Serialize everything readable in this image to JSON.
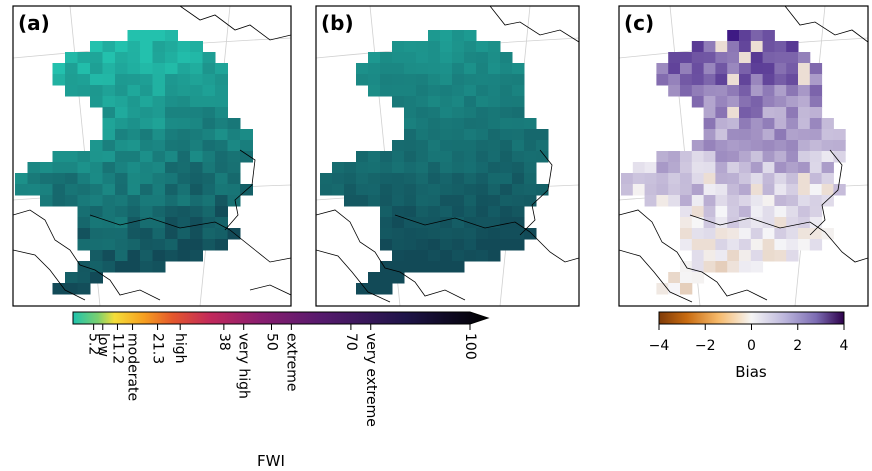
{
  "chart_data": [
    {
      "type": "heatmap",
      "panel": "(a)",
      "colorbar": "FWI",
      "value_range": [
        0,
        100
      ],
      "typical_values": [
        3,
        5,
        8,
        11
      ]
    },
    {
      "type": "heatmap",
      "panel": "(b)",
      "colorbar": "FWI",
      "value_range": [
        0,
        100
      ],
      "typical_values": [
        3,
        5,
        8
      ]
    },
    {
      "type": "heatmap",
      "panel": "(c)",
      "colorbar": "Bias",
      "value_range": [
        -4,
        4
      ],
      "typical_values": [
        -1,
        0,
        1,
        2,
        3,
        4
      ]
    }
  ],
  "fwi_colorbar": {
    "label": "FWI",
    "min": 0,
    "max": 100,
    "extend": "max",
    "ticks": [
      {
        "value": 5.2,
        "label": "5.2"
      },
      {
        "value": 7.5,
        "label": "low"
      },
      {
        "value": 11.2,
        "label": "11.2"
      },
      {
        "value": 15,
        "label": "moderate"
      },
      {
        "value": 21.3,
        "label": "21.3"
      },
      {
        "value": 27,
        "label": "high"
      },
      {
        "value": 38,
        "label": "38"
      },
      {
        "value": 43,
        "label": "very high"
      },
      {
        "value": 50,
        "label": "50"
      },
      {
        "value": 55,
        "label": "extreme"
      },
      {
        "value": 70,
        "label": "70"
      },
      {
        "value": 75,
        "label": "very extreme"
      },
      {
        "value": 100,
        "label": "100"
      }
    ]
  },
  "bias_colorbar": {
    "label": "Bias",
    "min": -4,
    "max": 4,
    "ticks": [
      {
        "value": -4,
        "label": "−4"
      },
      {
        "value": -2,
        "label": "−2"
      },
      {
        "value": 0,
        "label": "0"
      },
      {
        "value": 2,
        "label": "2"
      },
      {
        "value": 4,
        "label": "4"
      }
    ]
  },
  "colors": {
    "fwi_low": "#23c1ad",
    "fwi_mid": "#124a57",
    "bias_pos": "#3e1a84",
    "bias_neg": "#b35806",
    "border": "#000000"
  }
}
